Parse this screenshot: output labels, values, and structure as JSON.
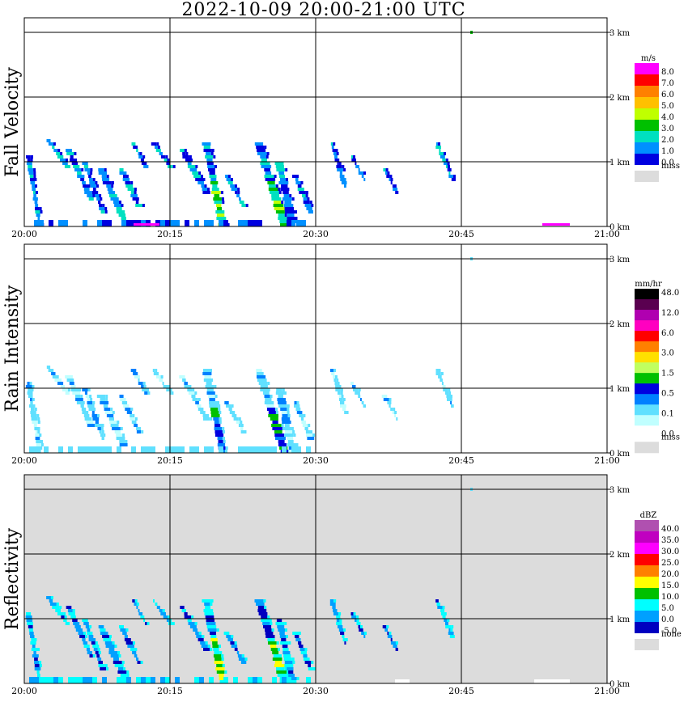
{
  "title": "2022-10-09   20:00-21:00 UTC",
  "chart_data": [
    {
      "type": "heatmap",
      "ylabel": "Fall Velocity",
      "x_ticks": [
        "20:00",
        "20:15",
        "20:30",
        "20:45",
        "21:00"
      ],
      "y_ticks": [
        "0 km",
        "1 km",
        "2 km",
        "3 km"
      ],
      "xlim": [
        "20:00",
        "21:00"
      ],
      "ylim_km": [
        0,
        3.2
      ],
      "grid": true,
      "background": "#ffffff",
      "legend": {
        "unit": "m/s",
        "labels": [
          "8.0",
          "7.0",
          "6.0",
          "5.0",
          "4.0",
          "3.0",
          "2.0",
          "1.0",
          "0.0"
        ],
        "colors": [
          "#ff00ff",
          "#ff0000",
          "#ff8000",
          "#ffc000",
          "#c0ff00",
          "#00c000",
          "#00e0c0",
          "#0090ff",
          "#0000e0"
        ],
        "miss_label": "miss",
        "miss_color": "#dcdcdc"
      }
    },
    {
      "type": "heatmap",
      "ylabel": "Rain Intensity",
      "x_ticks": [
        "20:00",
        "20:15",
        "20:30",
        "20:45",
        "21:00"
      ],
      "y_ticks": [
        "0 km",
        "1 km",
        "2 km",
        "3 km"
      ],
      "xlim": [
        "20:00",
        "21:00"
      ],
      "ylim_km": [
        0,
        3.2
      ],
      "grid": true,
      "background": "#ffffff",
      "legend": {
        "unit": "mm/hr",
        "labels": [
          "48.0",
          "12.0",
          "6.0",
          "3.0",
          "1.5",
          "0.5",
          "0.1",
          "0.0"
        ],
        "colors": [
          "#000000",
          "#5a0050",
          "#b000b0",
          "#ff00c0",
          "#ff0000",
          "#ff8000",
          "#ffe000",
          "#c0ff60",
          "#00c000",
          "#0000e0",
          "#0080ff",
          "#60e0ff",
          "#c0ffff",
          "#ffffff"
        ],
        "miss_label": "miss",
        "miss_color": "#dcdcdc"
      }
    },
    {
      "type": "heatmap",
      "ylabel": "Reflectivity",
      "x_ticks": [
        "20:00",
        "20:15",
        "20:30",
        "20:45",
        "21:00"
      ],
      "y_ticks": [
        "0 km",
        "1 km",
        "2 km",
        "3 km"
      ],
      "xlim": [
        "20:00",
        "21:00"
      ],
      "ylim_km": [
        0,
        3.2
      ],
      "grid": true,
      "background": "#dcdcdc",
      "legend": {
        "unit": "dBZ",
        "labels": [
          "40.0",
          "35.0",
          "30.0",
          "25.0",
          "20.0",
          "15.0",
          "10.0",
          "5.0",
          "0.0",
          "-5.0"
        ],
        "colors": [
          "#b050b0",
          "#c000c0",
          "#ff00ff",
          "#ff0000",
          "#ff8000",
          "#ffff00",
          "#00c000",
          "#00ffff",
          "#00a0ff",
          "#0000c0"
        ],
        "miss_label": "none",
        "miss_color": "#dcdcdc"
      }
    }
  ]
}
